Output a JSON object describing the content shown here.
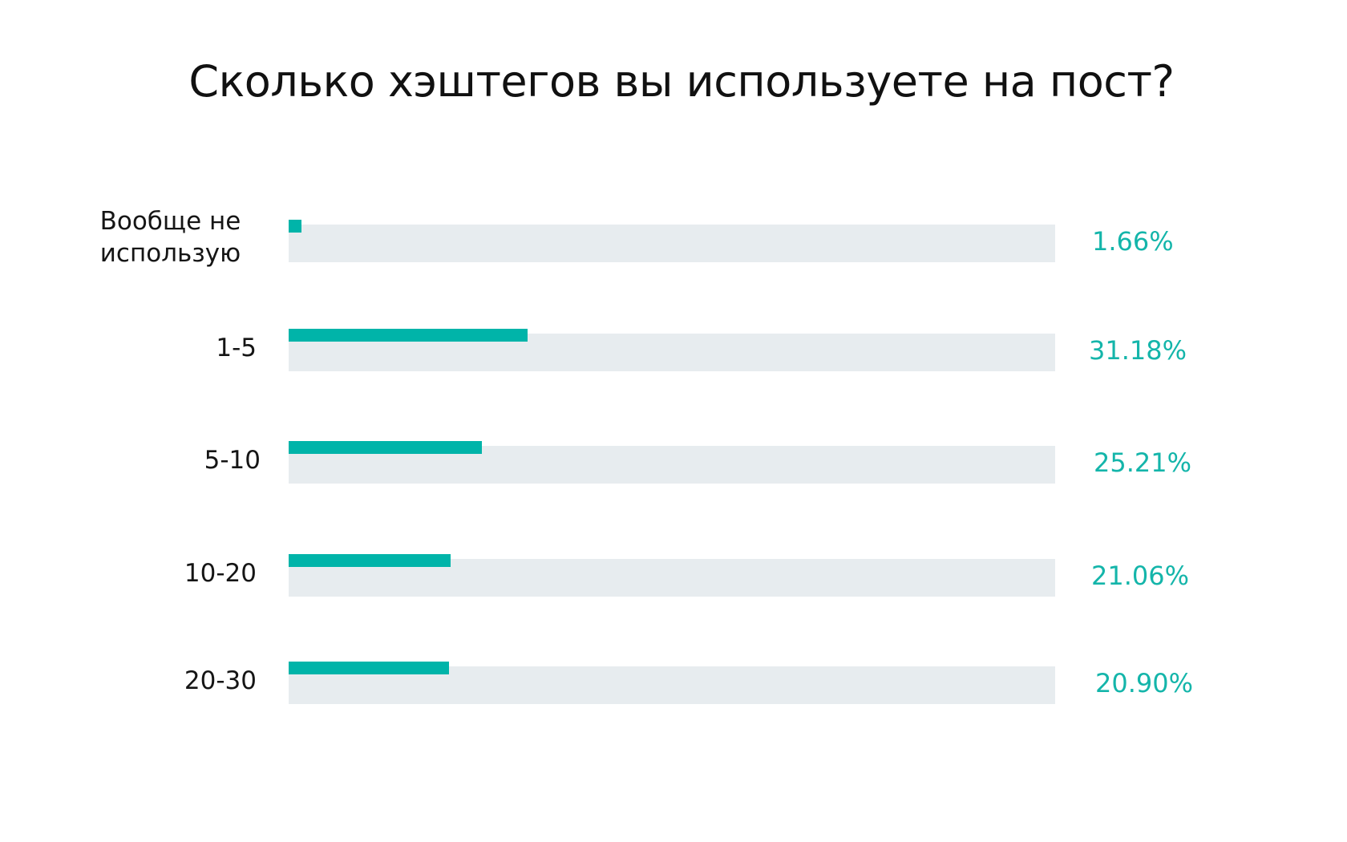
{
  "title": "Сколько хэштегов вы используете на пост?",
  "colors": {
    "bar": "#00b4a9",
    "track": "#e7ecef",
    "value_text": "#14b5aa",
    "label_text": "#151515"
  },
  "rows": [
    {
      "label": "Вообще не\nиспользую",
      "value_label": "1.66%",
      "value": 1.66
    },
    {
      "label": "1-5",
      "value_label": "31.18%",
      "value": 31.18
    },
    {
      "label": "5-10",
      "value_label": "25.21%",
      "value": 25.21
    },
    {
      "label": "10-20",
      "value_label": "21.06%",
      "value": 21.06
    },
    {
      "label": "20-30",
      "value_label": "20.90%",
      "value": 20.9
    }
  ],
  "chart_data": {
    "type": "bar",
    "orientation": "horizontal",
    "title": "Сколько хэштегов вы используете на пост?",
    "categories": [
      "Вообще не использую",
      "1-5",
      "5-10",
      "10-20",
      "20-30"
    ],
    "values": [
      1.66,
      31.18,
      25.21,
      21.06,
      20.9
    ],
    "value_labels": [
      "1.66%",
      "31.18%",
      "25.21%",
      "21.06%",
      "20.90%"
    ],
    "xlabel": "",
    "ylabel": "",
    "xlim": [
      0,
      100
    ],
    "unit": "%",
    "grid": false,
    "legend": null
  }
}
